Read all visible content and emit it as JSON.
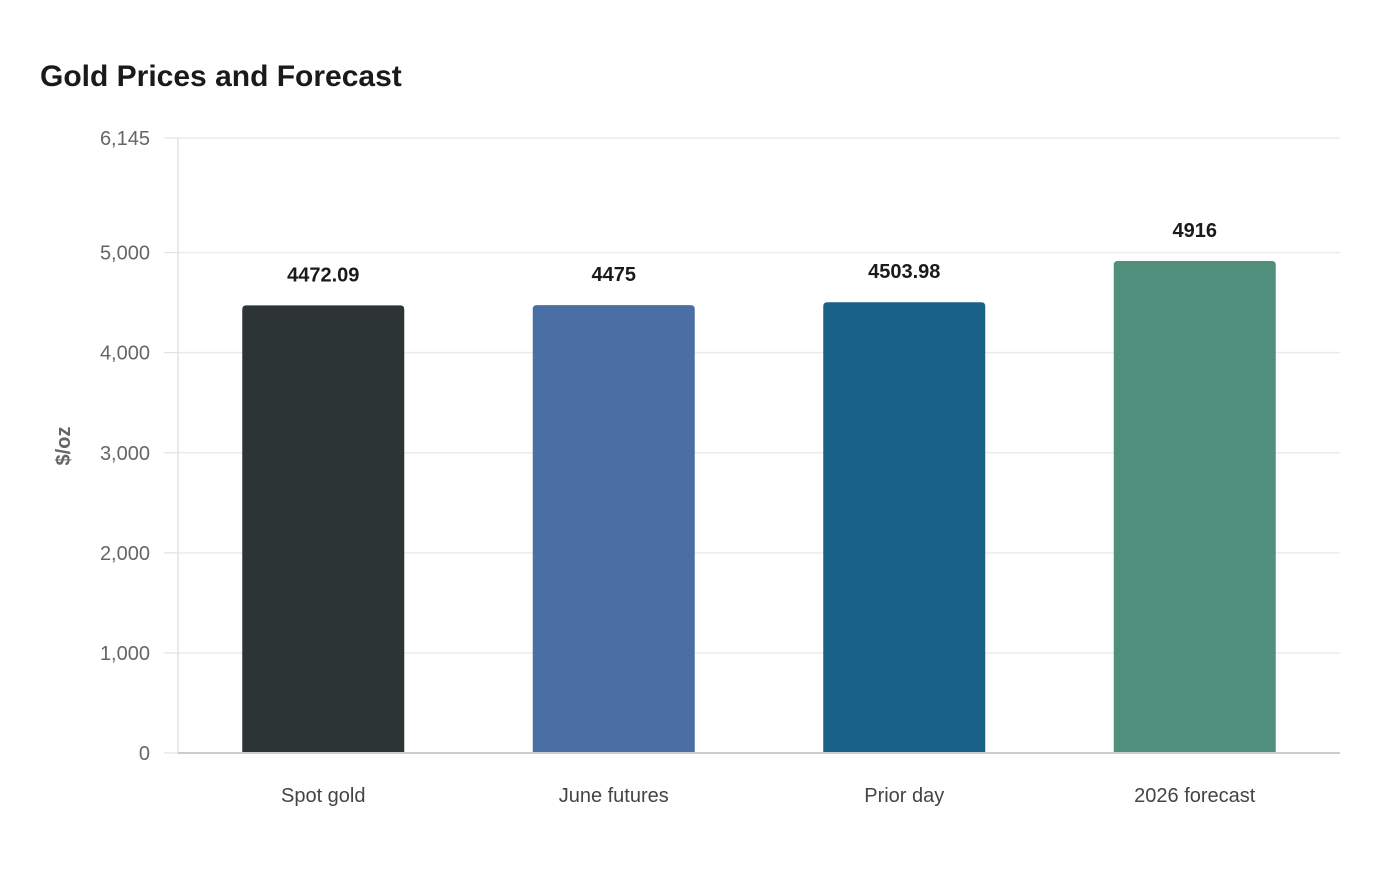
{
  "chart_data": {
    "type": "bar",
    "title": "Gold Prices and Forecast",
    "xlabel": "",
    "ylabel": "$/oz",
    "categories": [
      "Spot gold",
      "June futures",
      "Prior day",
      "2026 forecast"
    ],
    "values": [
      4472.09,
      4475,
      4503.98,
      4916
    ],
    "data_labels": [
      "4472.09",
      "4475",
      "4503.98",
      "4916"
    ],
    "colors": [
      "#2d3436",
      "#4a6fa5",
      "#1a6187",
      "#4f8f7b"
    ],
    "ylim": [
      0,
      6145
    ],
    "y_ticks": [
      0,
      1000,
      2000,
      3000,
      4000,
      5000,
      6145
    ],
    "y_tick_labels": [
      "0",
      "1,000",
      "2,000",
      "3,000",
      "4,000",
      "5,000",
      "6,145"
    ],
    "grid": true,
    "legend": "none"
  }
}
